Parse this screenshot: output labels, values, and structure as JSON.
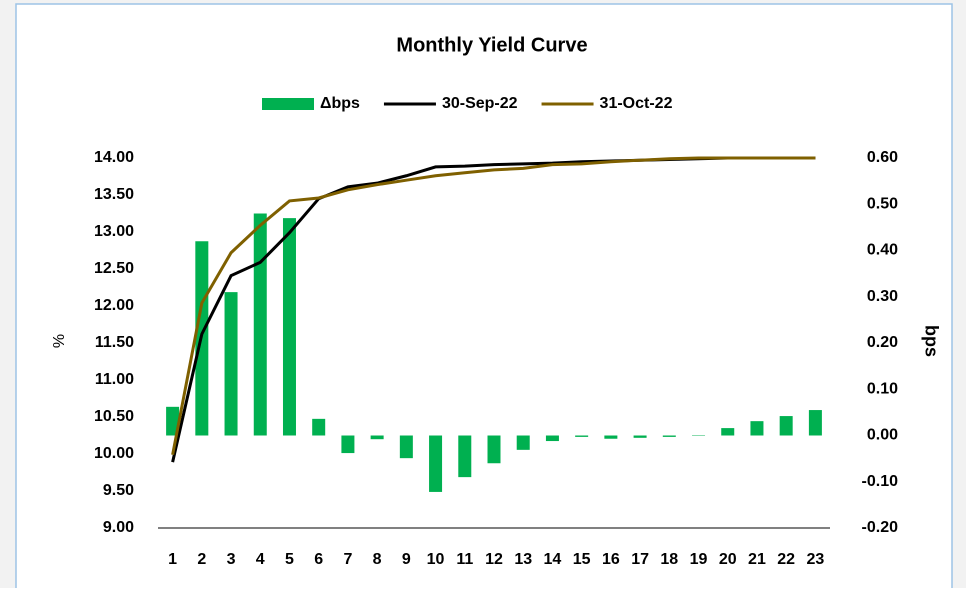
{
  "chart_data": {
    "type": "bar-line",
    "title": "Monthly Yield Curve",
    "y_label": "%",
    "y2_label": "bps",
    "categories": [
      "1",
      "2",
      "3",
      "4",
      "5",
      "6",
      "7",
      "8",
      "9",
      "10",
      "11",
      "12",
      "13",
      "14",
      "15",
      "16",
      "17",
      "18",
      "19",
      "20",
      "21",
      "22",
      "23"
    ],
    "series": [
      {
        "name": "Δbps",
        "type": "bar",
        "axis": "y2",
        "color": "#00b050",
        "values": [
          0.062,
          0.42,
          0.31,
          0.48,
          0.47,
          0.036,
          -0.038,
          -0.008,
          -0.049,
          -0.122,
          -0.09,
          -0.06,
          -0.031,
          -0.012,
          -0.003,
          -0.007,
          -0.005,
          -0.003,
          -0.001,
          0.016,
          0.031,
          0.042,
          0.055
        ]
      },
      {
        "name": "30-Sep-22",
        "type": "line",
        "axis": "y",
        "color": "#000000",
        "values": [
          9.89,
          11.62,
          12.41,
          12.59,
          12.99,
          13.45,
          13.61,
          13.66,
          13.76,
          13.88,
          13.89,
          13.91,
          13.92,
          13.93,
          13.95,
          13.96,
          13.97,
          13.98,
          13.99,
          14.0,
          14.0,
          14.0,
          14.0
        ]
      },
      {
        "name": "31-Oct-22",
        "type": "line",
        "axis": "y",
        "color": "#7f6000",
        "values": [
          9.99,
          12.04,
          12.72,
          13.09,
          13.42,
          13.46,
          13.57,
          13.64,
          13.7,
          13.76,
          13.8,
          13.84,
          13.86,
          13.91,
          13.92,
          13.95,
          13.97,
          13.99,
          14.0,
          14.0,
          14.0,
          14.0,
          14.0
        ]
      }
    ],
    "ylim": [
      9,
      14
    ],
    "yticks": [
      {
        "value": 9,
        "label": "9.00"
      },
      {
        "value": 9.5,
        "label": "9.50"
      },
      {
        "value": 10,
        "label": "10.00"
      },
      {
        "value": 10.5,
        "label": "10.50"
      },
      {
        "value": 11,
        "label": "11.00"
      },
      {
        "value": 11.5,
        "label": "11.50"
      },
      {
        "value": 12,
        "label": "12.00"
      },
      {
        "value": 12.5,
        "label": "12.50"
      },
      {
        "value": 13,
        "label": "13.00"
      },
      {
        "value": 13.5,
        "label": "13.50"
      },
      {
        "value": 14,
        "label": "14.00"
      }
    ],
    "y2lim": [
      -0.2,
      0.6
    ],
    "y2ticks": [
      {
        "value": -0.2,
        "label": "-0.20"
      },
      {
        "value": -0.1,
        "label": "-0.10"
      },
      {
        "value": 0,
        "label": "0.00"
      },
      {
        "value": 0.1,
        "label": "0.10"
      },
      {
        "value": 0.2,
        "label": "0.20"
      },
      {
        "value": 0.3,
        "label": "0.30"
      },
      {
        "value": 0.4,
        "label": "0.40"
      },
      {
        "value": 0.5,
        "label": "0.50"
      },
      {
        "value": 0.6,
        "label": "0.60"
      }
    ],
    "grid": false,
    "legend": "top"
  }
}
